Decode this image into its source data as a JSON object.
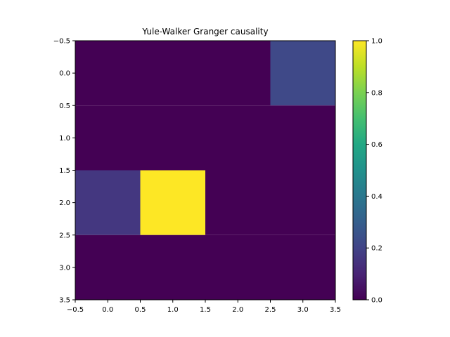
{
  "chart_data": {
    "type": "heatmap",
    "title": "Yule-Walker Granger causality",
    "xlabel": "",
    "ylabel": "",
    "x_ticks": [
      "−0.5",
      "0.0",
      "0.5",
      "1.0",
      "1.5",
      "2.0",
      "2.5",
      "3.0",
      "3.5"
    ],
    "y_ticks": [
      "−0.5",
      "0.0",
      "0.5",
      "1.0",
      "1.5",
      "2.0",
      "2.5",
      "3.0",
      "3.5"
    ],
    "x_tick_values": [
      -0.5,
      0.0,
      0.5,
      1.0,
      1.5,
      2.0,
      2.5,
      3.0,
      3.5
    ],
    "y_tick_values": [
      -0.5,
      0.0,
      0.5,
      1.0,
      1.5,
      2.0,
      2.5,
      3.0,
      3.5
    ],
    "xlim": [
      -0.5,
      3.5
    ],
    "ylim": [
      3.5,
      -0.5
    ],
    "matrix": [
      [
        0.0,
        0.0,
        0.0,
        0.22
      ],
      [
        0.0,
        0.0,
        0.0,
        0.0
      ],
      [
        0.16,
        1.0,
        0.0,
        0.0
      ],
      [
        0.0,
        0.0,
        0.0,
        0.0
      ]
    ],
    "colorbar": {
      "colormap": "viridis",
      "range": [
        0.0,
        1.0
      ],
      "tick_values": [
        0.0,
        0.2,
        0.4,
        0.6,
        0.8,
        1.0
      ],
      "ticks": [
        "0.0",
        "0.2",
        "0.4",
        "0.6",
        "0.8",
        "1.0"
      ]
    },
    "grid": false
  }
}
